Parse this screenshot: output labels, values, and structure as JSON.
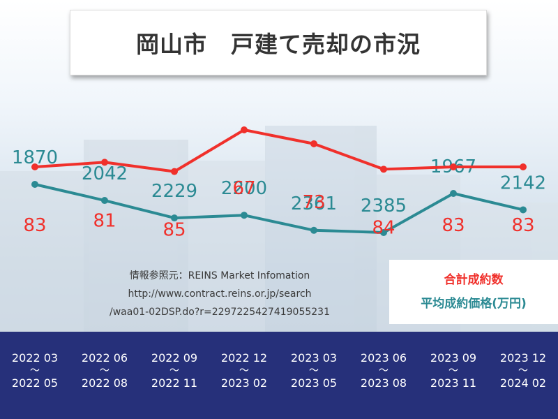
{
  "title": "岡山市　戸建て売却の市況",
  "source": {
    "line1": "情報参照元：REINS Market Infomation",
    "line2": "http://www.contract.reins.or.jp/search",
    "line3": "/waa01-02DSP.do?r=2297225427419055231"
  },
  "legend": {
    "count_label": "合計成約数",
    "price_label": "平均成約価格(万円)"
  },
  "colors": {
    "count": "#f0302b",
    "price": "#2b8a93",
    "band": "#26307a"
  },
  "chart_data": {
    "type": "line",
    "categories": [
      "2022 03 ～ 2022 05",
      "2022 06 ～ 2022 08",
      "2022 09 ～ 2022 11",
      "2022 12 ～ 2023 02",
      "2023 03 ～ 2023 05",
      "2023 06 ～ 2023 08",
      "2023 09 ～ 2023 11",
      "2023 12 ～ 2024 02"
    ],
    "series": [
      {
        "name": "合計成約数",
        "values": [
          83,
          81,
          85,
          67,
          73,
          84,
          83,
          83
        ]
      },
      {
        "name": "平均成約価格(万円)",
        "values": [
          1870,
          2042,
          2229,
          2200,
          2361,
          2385,
          1967,
          2142
        ]
      }
    ]
  },
  "periods": [
    {
      "start": "2022 03",
      "sep": "～",
      "end": "2022 05"
    },
    {
      "start": "2022 06",
      "sep": "～",
      "end": "2022 08"
    },
    {
      "start": "2022 09",
      "sep": "～",
      "end": "2022 11"
    },
    {
      "start": "2022 12",
      "sep": "～",
      "end": "2023 02"
    },
    {
      "start": "2023 03",
      "sep": "～",
      "end": "2023 05"
    },
    {
      "start": "2023 06",
      "sep": "～",
      "end": "2023 08"
    },
    {
      "start": "2023 09",
      "sep": "～",
      "end": "2023 11"
    },
    {
      "start": "2023 12",
      "sep": "～",
      "end": "2024 02"
    }
  ]
}
